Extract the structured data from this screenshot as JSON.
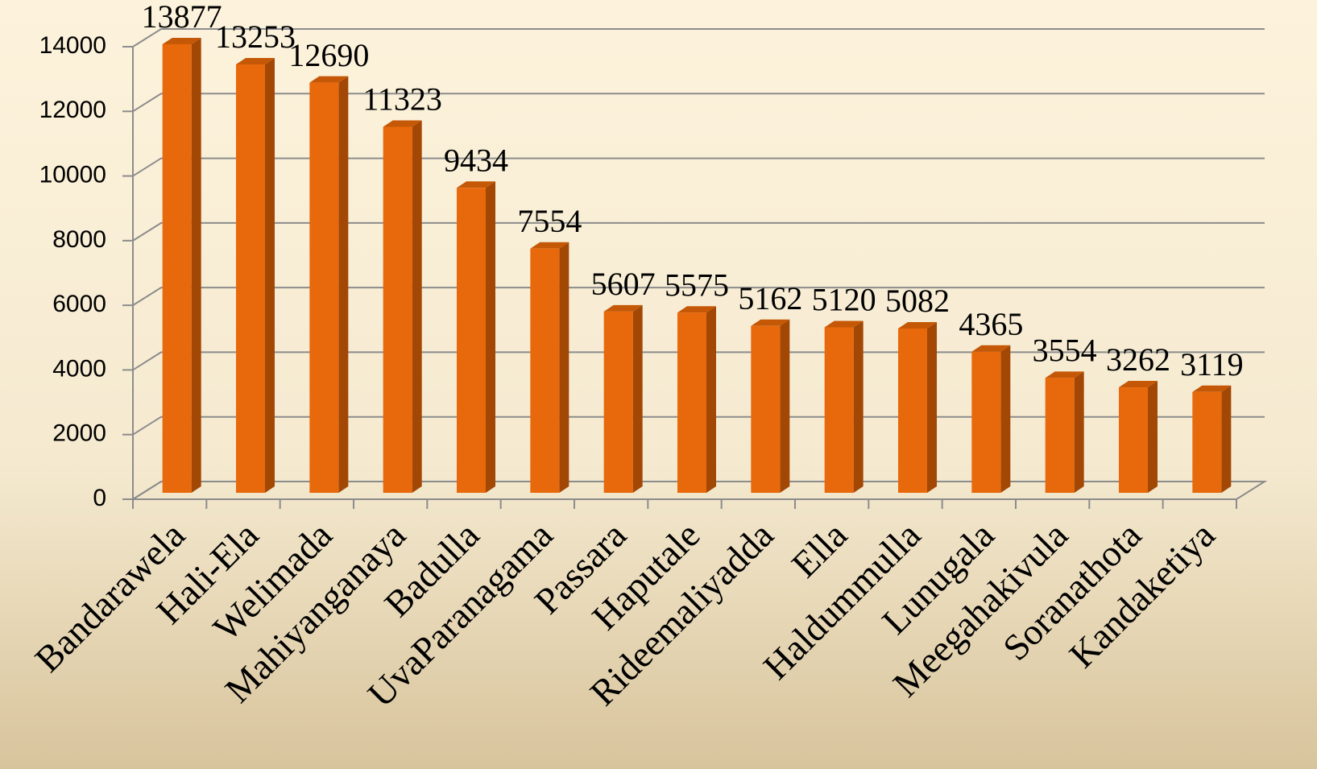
{
  "chart_data": {
    "type": "bar",
    "categories": [
      "Bandarawela",
      "Hali-Ela",
      "Welimada",
      "Mahiyanganaya",
      "Badulla",
      "UvaParanagama",
      "Passara",
      "Haputale",
      "Rideemaliyadda",
      "Ella",
      "Haldummulla",
      "Lunugala",
      "Meegahakivula",
      "Soranathota",
      "Kandaketiya"
    ],
    "values": [
      13877,
      13253,
      12690,
      11323,
      9434,
      7554,
      5607,
      5575,
      5162,
      5120,
      5082,
      4365,
      3554,
      3262,
      3119
    ],
    "color": "#e8690c",
    "ylim": [
      0,
      14000
    ],
    "yticks": [
      0,
      2000,
      4000,
      6000,
      8000,
      10000,
      12000,
      14000
    ],
    "grid": true
  }
}
